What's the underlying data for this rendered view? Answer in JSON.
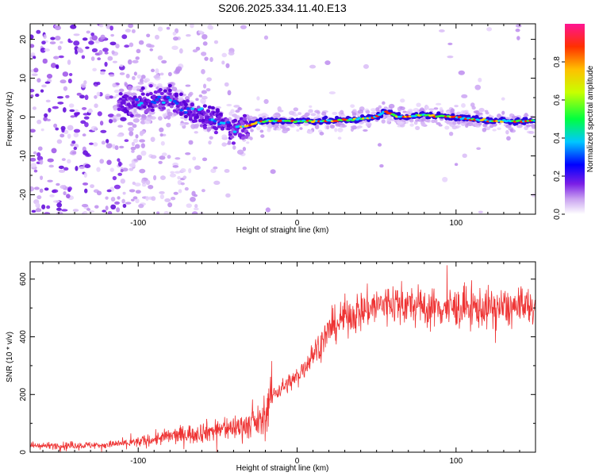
{
  "title": "S206.2025.334.11.40.E13",
  "chart_data": [
    {
      "type": "heatmap",
      "xlabel": "Height of straight line (km)",
      "ylabel": "Frequency (Hz)",
      "xlim": [
        -168,
        150
      ],
      "ylim": [
        -25,
        24
      ],
      "x_ticks": [
        -100,
        0,
        100
      ],
      "y_ticks": [
        -20,
        -10,
        0,
        10,
        20
      ],
      "colorbar": {
        "label": "Normalized spectral amplitude",
        "range": [
          0,
          1
        ],
        "ticks": [
          0.0,
          0.2,
          0.4,
          0.6,
          0.8
        ]
      },
      "ridge": [
        {
          "x": -110,
          "y": 3
        },
        {
          "x": -90,
          "y": 4
        },
        {
          "x": -80,
          "y": 5
        },
        {
          "x": -70,
          "y": 2
        },
        {
          "x": -60,
          "y": 1
        },
        {
          "x": -50,
          "y": -1
        },
        {
          "x": -40,
          "y": -3
        },
        {
          "x": -30,
          "y": -2
        },
        {
          "x": -20,
          "y": -1
        },
        {
          "x": 0,
          "y": -1
        },
        {
          "x": 20,
          "y": -1
        },
        {
          "x": 40,
          "y": -0.5
        },
        {
          "x": 50,
          "y": 0
        },
        {
          "x": 55,
          "y": 1.5
        },
        {
          "x": 65,
          "y": 0
        },
        {
          "x": 80,
          "y": 0.5
        },
        {
          "x": 100,
          "y": 0
        },
        {
          "x": 120,
          "y": -1
        },
        {
          "x": 150,
          "y": -1
        }
      ]
    },
    {
      "type": "line",
      "xlabel": "Height of straight line (km)",
      "ylabel": "SNR (10 * v/v)",
      "xlim": [
        -168,
        150
      ],
      "ylim": [
        0,
        660
      ],
      "x_ticks": [
        -100,
        0,
        100
      ],
      "y_ticks": [
        0,
        200,
        400,
        600
      ],
      "series": [
        {
          "name": "SNR",
          "color": "#ee3333",
          "trend": [
            {
              "x": -168,
              "y": 22
            },
            {
              "x": -120,
              "y": 25
            },
            {
              "x": -100,
              "y": 35
            },
            {
              "x": -80,
              "y": 55
            },
            {
              "x": -60,
              "y": 70
            },
            {
              "x": -40,
              "y": 85
            },
            {
              "x": -20,
              "y": 110
            },
            {
              "x": -18,
              "y": 190
            },
            {
              "x": 0,
              "y": 260
            },
            {
              "x": 10,
              "y": 340
            },
            {
              "x": 20,
              "y": 420
            },
            {
              "x": 30,
              "y": 470
            },
            {
              "x": 45,
              "y": 500
            },
            {
              "x": 60,
              "y": 520
            },
            {
              "x": 80,
              "y": 500
            },
            {
              "x": 100,
              "y": 500
            },
            {
              "x": 130,
              "y": 500
            },
            {
              "x": 150,
              "y": 500
            }
          ]
        }
      ]
    }
  ]
}
